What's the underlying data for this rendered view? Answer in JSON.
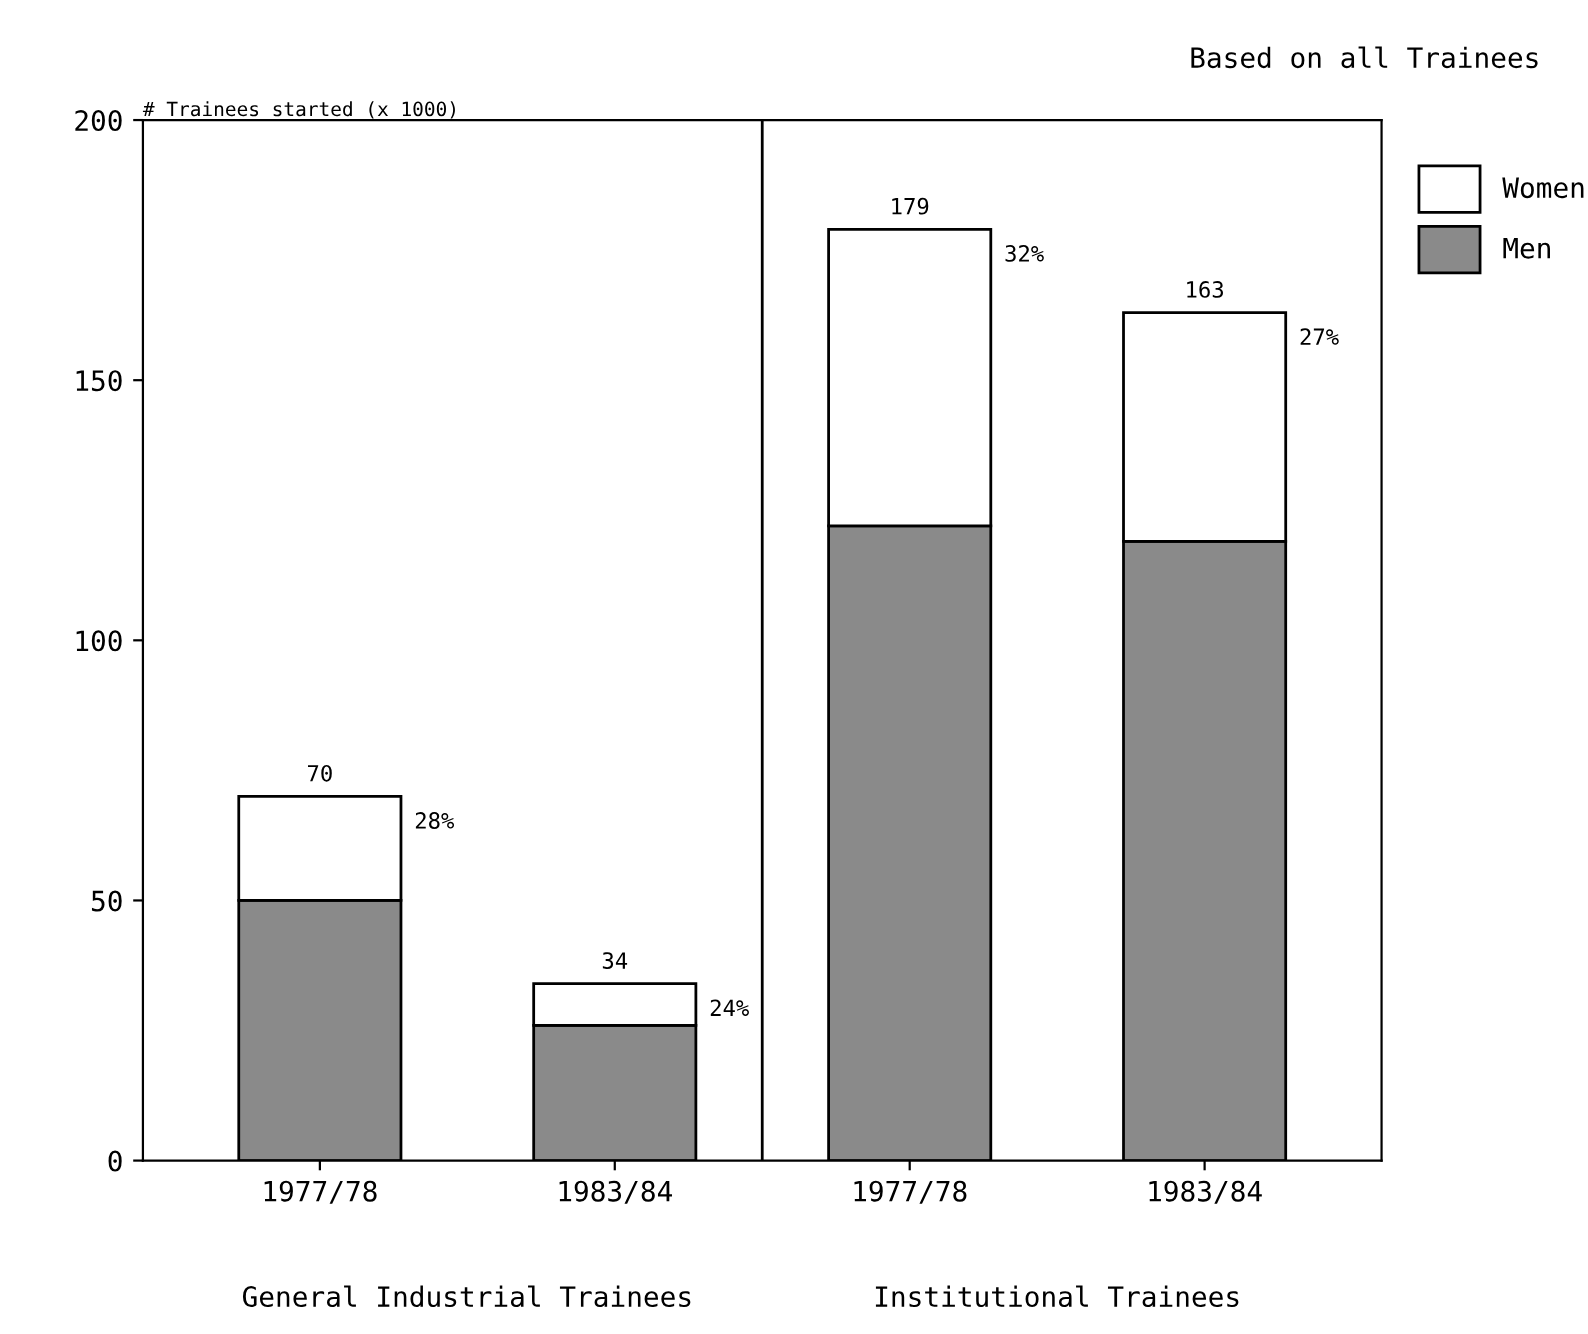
{
  "chart_data": {
    "type": "bar",
    "stacked": true,
    "ylabel": "# Trainees started (x 1000)",
    "categories": [
      "1977/78",
      "1983/84",
      "1977/78",
      "1983/84"
    ],
    "series": [
      {
        "name": "Men",
        "color": "#8a8a8a",
        "values": [
          50,
          26,
          122,
          119
        ]
      },
      {
        "name": "Women",
        "color": "#ffffff",
        "values": [
          20,
          8,
          57,
          44
        ]
      }
    ],
    "totals": [
      "70",
      "34",
      "179",
      "163"
    ],
    "ylim": [
      0,
      200
    ],
    "yticks": [
      0,
      50,
      100,
      150,
      200
    ],
    "grid": false,
    "legend": "top right",
    "annotations": [
      "Based on all Trainees",
      "General Industrial Trainees",
      "Institutional Trainees",
      "28%",
      "24%",
      "32%",
      "27%"
    ]
  }
}
